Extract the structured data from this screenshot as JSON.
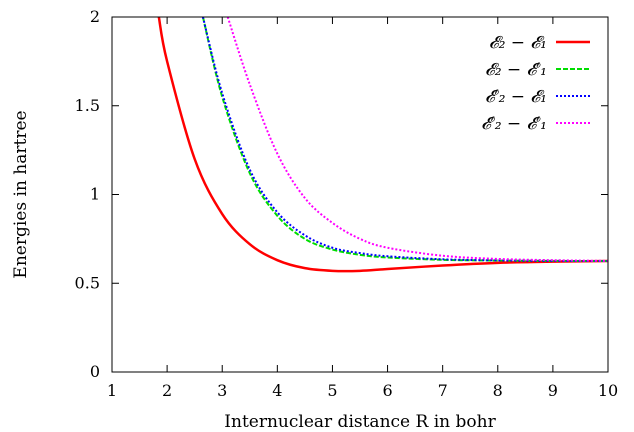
{
  "chart_data": {
    "type": "line",
    "xlabel": "Internuclear distance R in bohr",
    "ylabel": "Energies in hartree",
    "xlim": [
      1,
      10
    ],
    "ylim": [
      0,
      2
    ],
    "xticks": [
      "1",
      "2",
      "3",
      "4",
      "5",
      "6",
      "7",
      "8",
      "9",
      "10"
    ],
    "yticks": [
      "0",
      "0.5",
      "1",
      "1.5",
      "2"
    ],
    "legend_position": "top-right",
    "grid": false,
    "series": [
      {
        "name": "𝓔₂ − 𝓔₁",
        "color": "#ff0000",
        "style": "solid",
        "x": [
          1.85,
          2.0,
          2.5,
          3.0,
          3.5,
          4.0,
          4.5,
          5.0,
          5.5,
          6.0,
          7.0,
          8.0,
          9.0,
          10.0
        ],
        "y": [
          2.0,
          1.75,
          1.2,
          0.89,
          0.72,
          0.63,
          0.585,
          0.57,
          0.57,
          0.58,
          0.6,
          0.615,
          0.622,
          0.625
        ]
      },
      {
        "name": "𝓔₂ − 𝓔′₁",
        "color": "#00dd00",
        "style": "dashed",
        "x": [
          2.65,
          3.0,
          3.5,
          4.0,
          4.5,
          5.0,
          5.5,
          6.0,
          7.0,
          8.0,
          9.0,
          10.0
        ],
        "y": [
          2.0,
          1.55,
          1.12,
          0.88,
          0.75,
          0.69,
          0.66,
          0.645,
          0.632,
          0.628,
          0.626,
          0.625
        ]
      },
      {
        "name": "𝓔′₂ − 𝓔₁",
        "color": "#0000ff",
        "style": "dotted",
        "x": [
          2.65,
          3.0,
          3.5,
          4.0,
          4.5,
          5.0,
          5.5,
          6.0,
          7.0,
          8.0,
          9.0,
          10.0
        ],
        "y": [
          2.0,
          1.57,
          1.14,
          0.9,
          0.77,
          0.7,
          0.67,
          0.652,
          0.635,
          0.629,
          0.626,
          0.625
        ]
      },
      {
        "name": "𝓔′₂ − 𝓔′₁",
        "color": "#ff00ff",
        "style": "dotted",
        "x": [
          3.1,
          3.5,
          4.0,
          4.5,
          5.0,
          5.5,
          6.0,
          7.0,
          8.0,
          9.0,
          10.0
        ],
        "y": [
          2.0,
          1.62,
          1.23,
          0.98,
          0.84,
          0.75,
          0.7,
          0.655,
          0.637,
          0.63,
          0.626
        ]
      }
    ]
  }
}
